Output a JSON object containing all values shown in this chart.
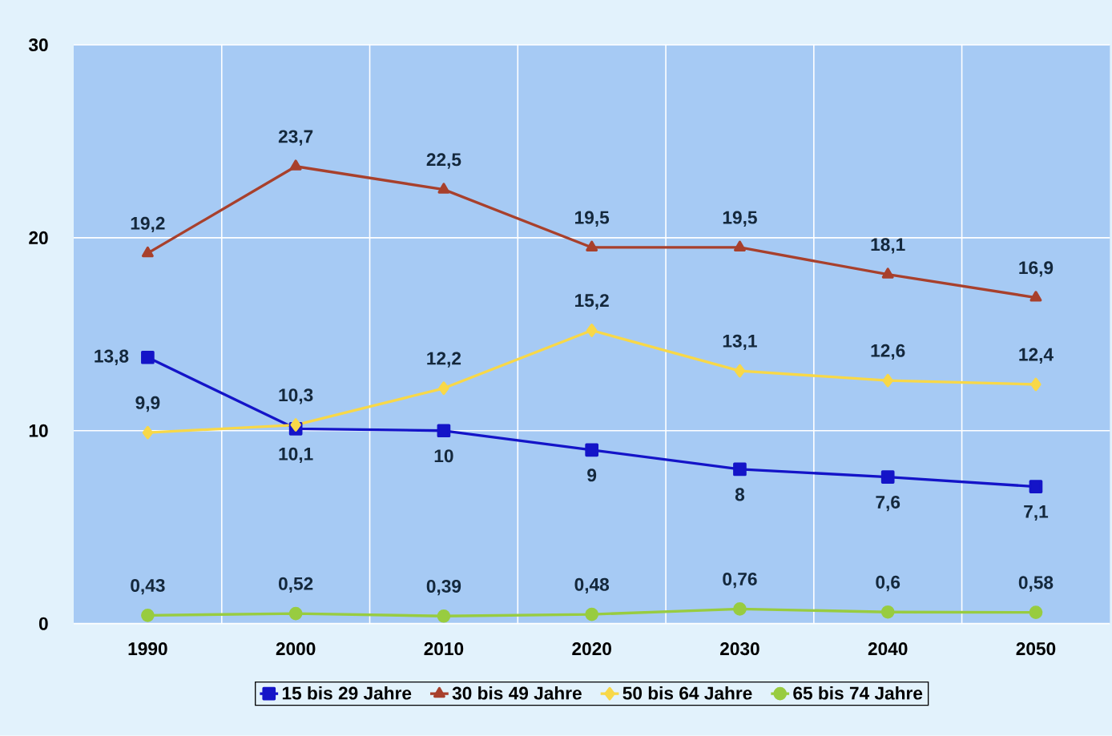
{
  "chart_data": {
    "type": "line",
    "categories": [
      "1990",
      "2000",
      "2010",
      "2020",
      "2030",
      "2040",
      "2050"
    ],
    "ylim": [
      0,
      30
    ],
    "yticks": [
      0,
      10,
      20,
      30
    ],
    "grid": true,
    "legend": "bottom",
    "series": [
      {
        "name": "15 bis 29 Jahre",
        "color": "#1414c8",
        "marker": "square",
        "values": [
          13.8,
          10.1,
          10,
          9,
          8,
          7.6,
          7.1
        ],
        "value_labels": [
          "13,8",
          "10,1",
          "10",
          "9",
          "8",
          "7,6",
          "7,1"
        ]
      },
      {
        "name": "30 bis 49 Jahre",
        "color": "#a8402c",
        "marker": "triangle",
        "values": [
          19.2,
          23.7,
          22.5,
          19.5,
          19.5,
          18.1,
          16.9
        ],
        "value_labels": [
          "19,2",
          "23,7",
          "22,5",
          "19,5",
          "19,5",
          "18,1",
          "16,9"
        ]
      },
      {
        "name": "50 bis 64 Jahre",
        "color": "#f8d848",
        "marker": "diamond",
        "values": [
          9.9,
          10.3,
          12.2,
          15.2,
          13.1,
          12.6,
          12.4
        ],
        "value_labels": [
          "9,9",
          "10,3",
          "12,2",
          "15,2",
          "13,1",
          "12,6",
          "12,4"
        ]
      },
      {
        "name": "65 bis 74 Jahre",
        "color": "#98cc40",
        "marker": "circle",
        "values": [
          0.43,
          0.52,
          0.39,
          0.48,
          0.76,
          0.6,
          0.58
        ],
        "value_labels": [
          "0,43",
          "0,52",
          "0,39",
          "0,48",
          "0,76",
          "0,6",
          "0,58"
        ]
      }
    ]
  }
}
